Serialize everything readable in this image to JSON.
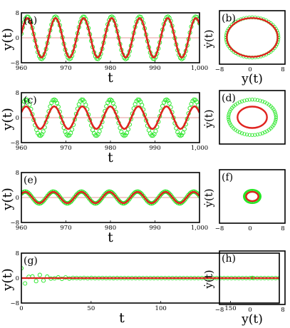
{
  "colors": {
    "simulation": "#e0231f",
    "theory": "#22e622",
    "axis": "#000000",
    "zero_line": "#cc3333"
  },
  "chart_data": [
    {
      "panel": "(a)",
      "type": "line",
      "xlabel": "t",
      "ylabel": "y(t)",
      "xlim": [
        960,
        1000
      ],
      "ylim": [
        -8,
        8
      ],
      "xticks": [
        960,
        970,
        980,
        990,
        1000
      ],
      "xtick_labels": [
        "960",
        "970",
        "980",
        "990",
        "1,000"
      ],
      "yticks": [
        -8,
        0,
        8
      ],
      "ytick_labels": [
        "−8",
        "0",
        "8"
      ],
      "series": [
        {
          "role": "red solid line",
          "amplitude": 6.3,
          "period": 6.3,
          "phase": 0.2,
          "style": "line"
        },
        {
          "role": "green open circles",
          "amplitude": 6.8,
          "period": 6.3,
          "phase": 0.2,
          "style": "circles"
        }
      ]
    },
    {
      "panel": "(b)",
      "type": "scatter",
      "xlabel": "y(t)",
      "ylabel": "ẏ(t)",
      "xlim": [
        -8,
        8
      ],
      "ylim": [
        -8,
        8
      ],
      "xticks": [
        -8,
        0,
        8
      ],
      "xtick_labels": [
        "−8",
        "0",
        "8"
      ],
      "series": [
        {
          "role": "red solid orbit",
          "rx": 6.2,
          "ry": 5.8,
          "style": "line"
        },
        {
          "role": "green open circles",
          "rx": 6.4,
          "ry": 6.0,
          "style": "circles"
        }
      ]
    },
    {
      "panel": "(c)",
      "type": "line",
      "xlabel": "t",
      "ylabel": "y(t)",
      "xlim": [
        960,
        1000
      ],
      "ylim": [
        -8,
        8
      ],
      "xticks": [
        960,
        970,
        980,
        990,
        1000
      ],
      "xtick_labels": [
        "960",
        "970",
        "980",
        "990",
        "1,000"
      ],
      "yticks": [
        -8,
        0,
        8
      ],
      "ytick_labels": [
        "−8",
        "0",
        "8"
      ],
      "series": [
        {
          "role": "red solid line",
          "amplitude": 3.6,
          "period": 6.3,
          "phase": 0.5,
          "style": "line"
        },
        {
          "role": "green open circles",
          "amplitude": 5.8,
          "period": 6.3,
          "phase": 0.5,
          "style": "circles"
        }
      ]
    },
    {
      "panel": "(d)",
      "type": "scatter",
      "xlabel": "",
      "ylabel": "ẏ(t)",
      "xlim": [
        -8,
        8
      ],
      "ylim": [
        -8,
        8
      ],
      "series": [
        {
          "role": "red solid orbit",
          "rx": 3.6,
          "ry": 3.2,
          "style": "line"
        },
        {
          "role": "green open circles",
          "rx": 5.8,
          "ry": 5.3,
          "style": "circles"
        }
      ]
    },
    {
      "panel": "(e)",
      "type": "line",
      "xlabel": "t",
      "ylabel": "y(t)",
      "xlim": [
        960,
        1000
      ],
      "ylim": [
        -8,
        8
      ],
      "xticks": [
        960,
        970,
        980,
        990,
        1000
      ],
      "xtick_labels": [
        "960",
        "970",
        "980",
        "990",
        "1,000"
      ],
      "yticks": [
        -8,
        0,
        8
      ],
      "ytick_labels": [
        "−8",
        "0",
        "8"
      ],
      "series": [
        {
          "role": "red solid line",
          "amplitude": 1.8,
          "period": 6.3,
          "phase": 0.7,
          "style": "line"
        },
        {
          "role": "green open circles",
          "amplitude": 1.9,
          "period": 6.3,
          "phase": 0.7,
          "style": "circles"
        }
      ]
    },
    {
      "panel": "(f)",
      "type": "scatter",
      "xlabel": "",
      "ylabel": "ẏ(t)",
      "xlim": [
        -8,
        8
      ],
      "ylim": [
        -8,
        8
      ],
      "xticks": [
        -8,
        0,
        8
      ],
      "xtick_labels": [
        "−8",
        "0",
        "8"
      ],
      "series": [
        {
          "role": "red solid orbit",
          "rx": 1.5,
          "ry": 1.4,
          "style": "line"
        },
        {
          "role": "green open circles",
          "rx": 1.8,
          "ry": 1.7,
          "style": "circles"
        }
      ]
    },
    {
      "panel": "(g)",
      "type": "line",
      "xlabel": "t",
      "ylabel": "y(t)",
      "xlim": [
        0,
        185
      ],
      "ylim": [
        -8,
        8
      ],
      "xticks": [
        0,
        50,
        100,
        150
      ],
      "xtick_labels": [
        "0",
        "50",
        "100",
        "150"
      ],
      "yticks": [
        -8,
        0,
        8
      ],
      "ytick_labels": [
        "−8",
        "0",
        "8"
      ],
      "series": [
        {
          "role": "red solid line",
          "amplitude": 0.0,
          "style": "line"
        },
        {
          "role": "green open circles",
          "amplitude": 3.4,
          "decay": 0.09,
          "period": 6.3,
          "style": "circles"
        }
      ]
    },
    {
      "panel": "(h)",
      "type": "scatter",
      "xlabel": "y(t)",
      "ylabel": "ẏ(t)",
      "xlim": [
        -8,
        8
      ],
      "ylim": [
        -8,
        8
      ],
      "xticks": [
        -8,
        0,
        8
      ],
      "xtick_labels": [
        "−8",
        "0",
        "8"
      ],
      "series": [
        {
          "role": "red fixed point",
          "x": 0,
          "y": 0,
          "style": "point"
        },
        {
          "role": "green open circles",
          "x": 0,
          "y": 0,
          "style": "circles"
        }
      ]
    }
  ]
}
